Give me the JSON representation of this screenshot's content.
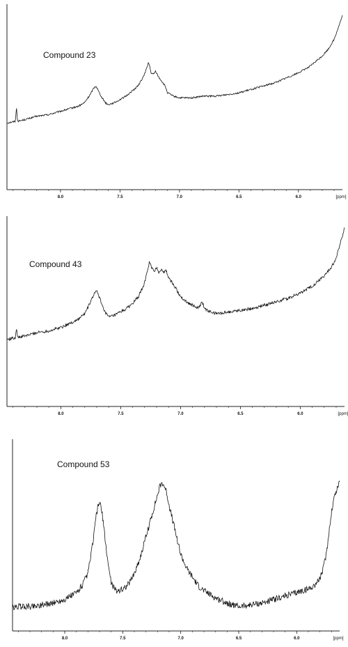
{
  "chart_data": [
    {
      "type": "line",
      "title": "Compound 23",
      "xlabel": "[ppm]",
      "xlim": [
        8.45,
        5.63
      ],
      "x_reversed": true,
      "ylim": [
        0,
        100
      ],
      "grid": false,
      "xticks": [
        "8.0",
        "7.5",
        "7.0",
        "6.5",
        "6.0"
      ],
      "xtick_values": [
        8.0,
        7.5,
        7.0,
        6.5,
        6.0
      ],
      "noise": 0.5,
      "series": [
        {
          "x": [
            8.45,
            8.38,
            8.37,
            8.36,
            8.3,
            8.2,
            8.1,
            8.0,
            7.9,
            7.85,
            7.8,
            7.75,
            7.72,
            7.7,
            7.68,
            7.65,
            7.62,
            7.6,
            7.55,
            7.5,
            7.45,
            7.4,
            7.35,
            7.3,
            7.28,
            7.26,
            7.25,
            7.24,
            7.22,
            7.2,
            7.18,
            7.15,
            7.12,
            7.1,
            7.05,
            7.0,
            6.95,
            6.9,
            6.8,
            6.7,
            6.6,
            6.5,
            6.4,
            6.3,
            6.2,
            6.1,
            6.0,
            5.95,
            5.9,
            5.85,
            5.8,
            5.75,
            5.7,
            5.67,
            5.63
          ],
          "y": [
            34,
            35,
            43,
            35,
            36,
            38,
            39,
            41,
            43,
            44,
            46,
            51,
            55,
            56,
            53,
            49,
            46,
            45,
            46,
            48,
            50,
            53,
            56,
            62,
            66,
            70,
            68,
            64,
            63,
            65,
            62,
            59,
            56,
            52,
            50,
            49,
            49,
            49,
            50,
            50,
            51,
            52,
            54,
            56,
            58,
            61,
            64,
            66,
            68,
            71,
            74,
            78,
            84,
            90,
            98
          ]
        }
      ]
    },
    {
      "type": "line",
      "title": "Compound 43",
      "xlabel": "[ppm]",
      "xlim": [
        8.45,
        5.63
      ],
      "x_reversed": true,
      "ylim": [
        0,
        100
      ],
      "grid": false,
      "xticks": [
        "8.0",
        "7.5",
        "7.0",
        "6.5",
        "6.0"
      ],
      "xtick_values": [
        8.0,
        7.5,
        7.0,
        6.5,
        6.0
      ],
      "noise": 0.9,
      "series": [
        {
          "x": [
            8.45,
            8.38,
            8.37,
            8.36,
            8.3,
            8.2,
            8.1,
            8.0,
            7.9,
            7.85,
            7.8,
            7.75,
            7.72,
            7.7,
            7.68,
            7.65,
            7.62,
            7.6,
            7.55,
            7.5,
            7.45,
            7.4,
            7.35,
            7.3,
            7.28,
            7.26,
            7.24,
            7.22,
            7.2,
            7.18,
            7.16,
            7.14,
            7.12,
            7.1,
            7.05,
            7.0,
            6.95,
            6.9,
            6.85,
            6.82,
            6.8,
            6.78,
            6.75,
            6.7,
            6.6,
            6.5,
            6.4,
            6.3,
            6.2,
            6.1,
            6.0,
            5.95,
            5.9,
            5.85,
            5.8,
            5.75,
            5.7,
            5.67,
            5.63
          ],
          "y": [
            33,
            34,
            40,
            34,
            35,
            37,
            38,
            40,
            43,
            45,
            48,
            55,
            60,
            61,
            58,
            52,
            48,
            46,
            47,
            49,
            51,
            54,
            58,
            66,
            72,
            78,
            75,
            72,
            75,
            72,
            74,
            72,
            73,
            69,
            64,
            58,
            55,
            53,
            51,
            55,
            51,
            50,
            49,
            48,
            49,
            50,
            51,
            53,
            55,
            57,
            60,
            62,
            64,
            67,
            70,
            74,
            80,
            88,
            98
          ]
        }
      ]
    },
    {
      "type": "line",
      "title": "Compound 53",
      "xlabel": "[ppm]",
      "xlim": [
        8.45,
        5.63
      ],
      "x_reversed": true,
      "ylim": [
        0,
        100
      ],
      "grid": false,
      "xticks": [
        "8.0",
        "7.5",
        "7.0",
        "6.5",
        "6.0"
      ],
      "xtick_values": [
        8.0,
        7.5,
        7.0,
        6.5,
        6.0
      ],
      "noise": 1.8,
      "series": [
        {
          "x": [
            8.45,
            8.4,
            8.3,
            8.2,
            8.1,
            8.0,
            7.9,
            7.85,
            7.8,
            7.78,
            7.75,
            7.73,
            7.71,
            7.7,
            7.69,
            7.67,
            7.65,
            7.62,
            7.6,
            7.57,
            7.55,
            7.5,
            7.45,
            7.4,
            7.35,
            7.3,
            7.25,
            7.2,
            7.18,
            7.16,
            7.14,
            7.12,
            7.1,
            7.05,
            7.0,
            6.95,
            6.9,
            6.85,
            6.8,
            6.7,
            6.6,
            6.5,
            6.4,
            6.3,
            6.2,
            6.1,
            6.0,
            5.95,
            5.9,
            5.85,
            5.8,
            5.77,
            5.74,
            5.72,
            5.7,
            5.68,
            5.66,
            5.64,
            5.63
          ],
          "y": [
            7,
            8,
            8,
            9,
            10,
            12,
            16,
            20,
            27,
            35,
            48,
            60,
            66,
            68,
            66,
            58,
            45,
            30,
            22,
            18,
            17,
            18,
            21,
            27,
            36,
            48,
            60,
            72,
            77,
            79,
            77,
            73,
            66,
            52,
            38,
            30,
            25,
            20,
            17,
            13,
            10,
            8,
            9,
            10,
            12,
            14,
            16,
            17,
            18,
            20,
            24,
            30,
            40,
            52,
            62,
            70,
            74,
            78,
            80
          ]
        }
      ]
    }
  ]
}
